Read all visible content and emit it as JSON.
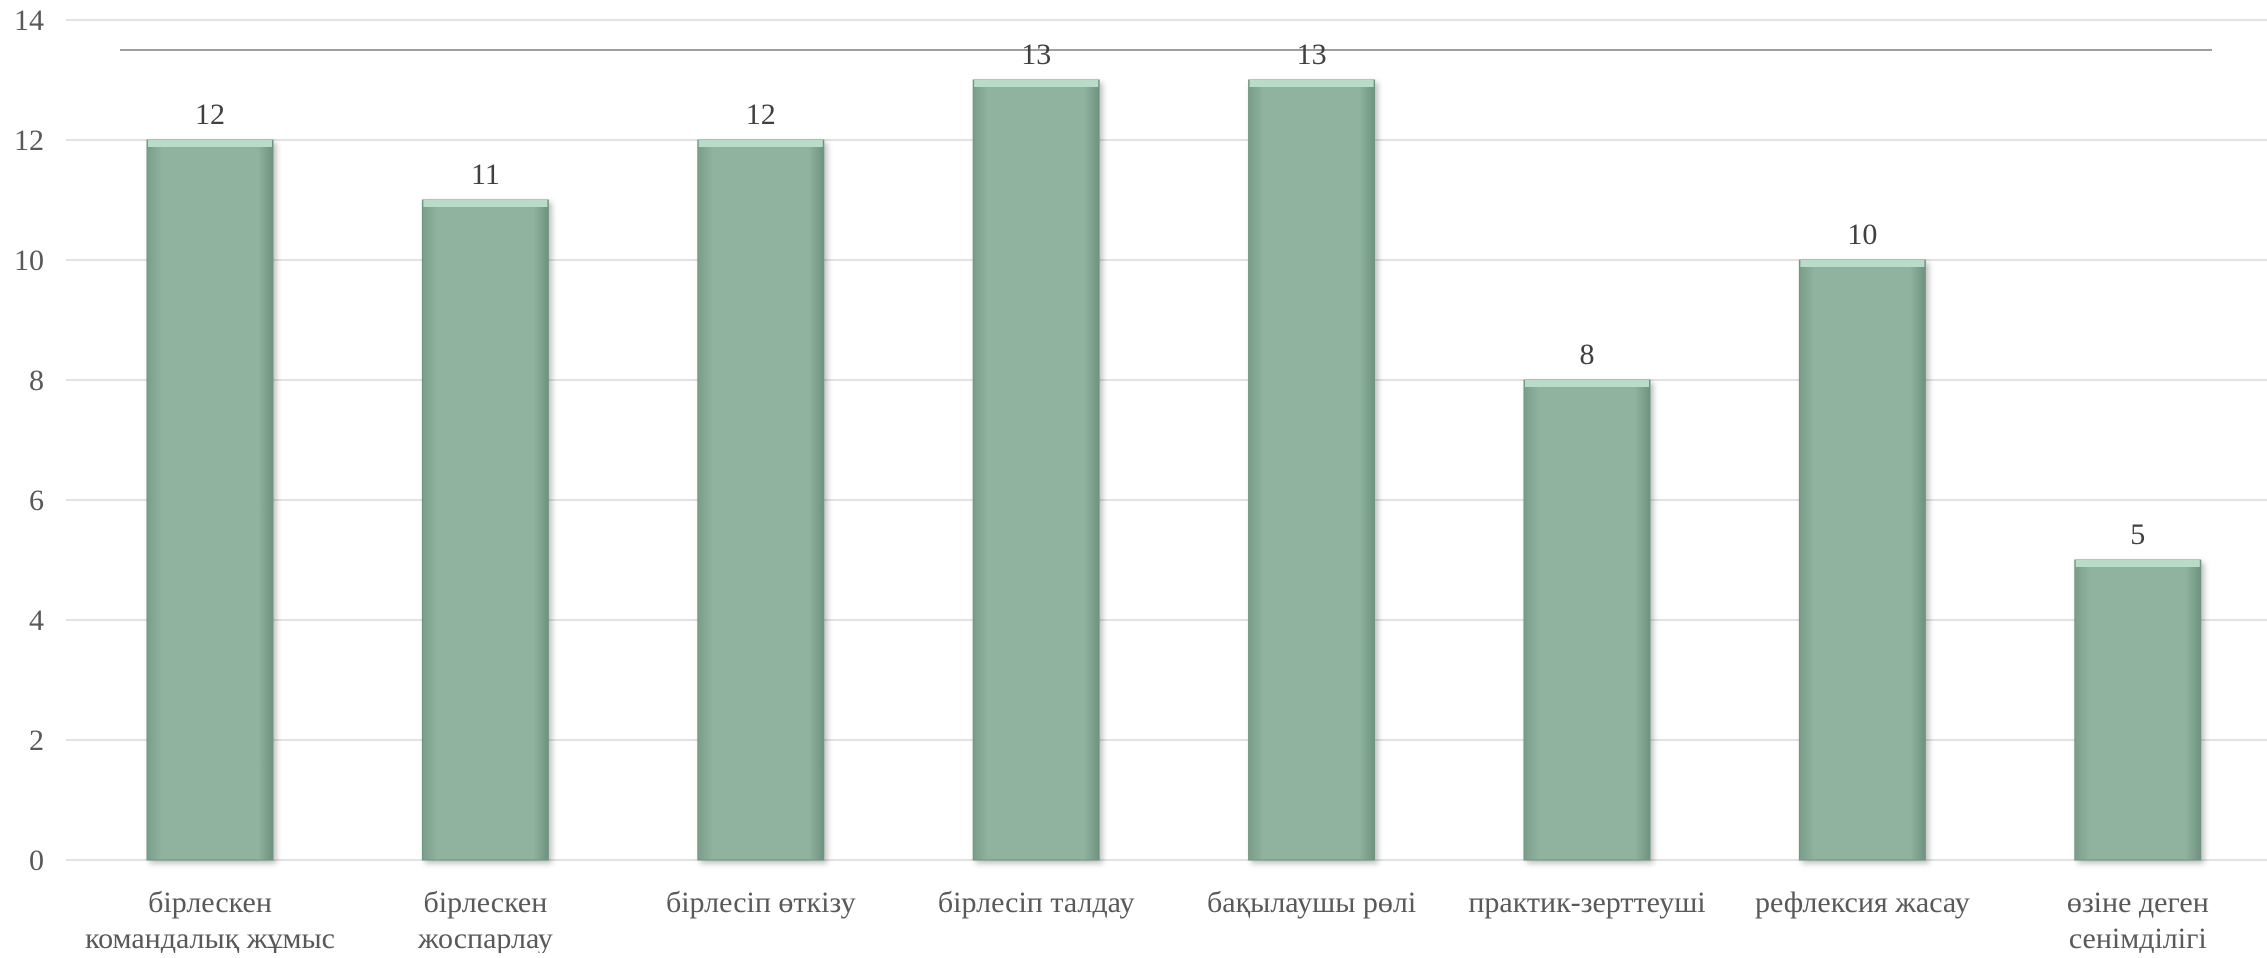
{
  "colors": {
    "bar_fill": "#8fb39f",
    "bar_highlight": "#b9dcc8",
    "bar_edge": "#6e9681",
    "grid": "#d9d9d9",
    "reference_line": "#7f7f7f",
    "text": "#595959"
  },
  "chart_data": {
    "type": "bar",
    "title": "",
    "xlabel": "",
    "ylabel": "",
    "ylim": [
      0,
      14
    ],
    "yticks": [
      0,
      2,
      4,
      6,
      8,
      10,
      12,
      14
    ],
    "grid": true,
    "legend": "none",
    "reference_line_value": 13.5,
    "categories": [
      [
        "бірлескен",
        "командалық жұмыс"
      ],
      [
        "бірлескен",
        "жоспарлау"
      ],
      [
        "бірлесіп өткізу"
      ],
      [
        "бірлесіп  талдау"
      ],
      [
        "бақылаушы  рөлі"
      ],
      [
        "практик-зерттеуші"
      ],
      [
        "рефлексия жасау"
      ],
      [
        "өзіне деген",
        "сенімділігі"
      ]
    ],
    "values": [
      12,
      11,
      12,
      13,
      13,
      8,
      10,
      5
    ]
  }
}
